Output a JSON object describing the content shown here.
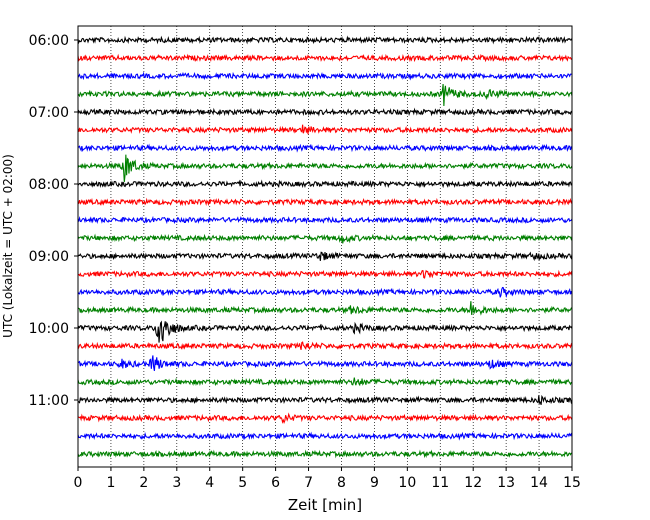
{
  "chart_data": {
    "type": "line",
    "xlabel": "Zeit  [min]",
    "ylabel": "UTC (Lokalzeit = UTC + 02:00)",
    "xlim": [
      0,
      15
    ],
    "x_ticks": [
      0,
      1,
      2,
      3,
      4,
      5,
      6,
      7,
      8,
      9,
      10,
      11,
      12,
      13,
      14,
      15
    ],
    "y_ticks": [
      "06:00",
      "07:00",
      "08:00",
      "09:00",
      "10:00",
      "11:00"
    ],
    "grid": "vertical-dotted",
    "row_interval_min": 15,
    "start_time": "06:00",
    "colors": [
      "#000000",
      "#ff0000",
      "#0000ff",
      "#008000"
    ],
    "rows": [
      {
        "label": "06:00",
        "color": "#000000",
        "events": []
      },
      {
        "label": "06:15",
        "color": "#ff0000",
        "events": []
      },
      {
        "label": "06:30",
        "color": "#0000ff",
        "events": []
      },
      {
        "label": "06:45",
        "color": "#008000",
        "events": [
          {
            "t": 11.1,
            "amp": 11
          },
          {
            "t": 12.4,
            "amp": 4
          }
        ]
      },
      {
        "label": "07:00",
        "color": "#000000",
        "events": []
      },
      {
        "label": "07:15",
        "color": "#ff0000",
        "events": [
          {
            "t": 6.8,
            "amp": 4
          }
        ]
      },
      {
        "label": "07:30",
        "color": "#0000ff",
        "events": []
      },
      {
        "label": "07:45",
        "color": "#008000",
        "events": [
          {
            "t": 1.4,
            "amp": 15
          }
        ]
      },
      {
        "label": "08:00",
        "color": "#000000",
        "events": []
      },
      {
        "label": "08:15",
        "color": "#ff0000",
        "events": []
      },
      {
        "label": "08:30",
        "color": "#0000ff",
        "events": []
      },
      {
        "label": "08:45",
        "color": "#008000",
        "events": [
          {
            "t": 8.0,
            "amp": 4
          }
        ]
      },
      {
        "label": "09:00",
        "color": "#000000",
        "events": [
          {
            "t": 7.3,
            "amp": 5
          },
          {
            "t": 13.8,
            "amp": 3
          }
        ]
      },
      {
        "label": "09:15",
        "color": "#ff0000",
        "events": [
          {
            "t": 10.5,
            "amp": 4
          }
        ]
      },
      {
        "label": "09:30",
        "color": "#0000ff",
        "events": [
          {
            "t": 12.8,
            "amp": 4
          }
        ]
      },
      {
        "label": "09:45",
        "color": "#008000",
        "events": [
          {
            "t": 8.3,
            "amp": 4
          },
          {
            "t": 11.9,
            "amp": 9
          }
        ]
      },
      {
        "label": "10:00",
        "color": "#000000",
        "events": [
          {
            "t": 2.45,
            "amp": 28
          },
          {
            "t": 8.4,
            "amp": 4
          }
        ]
      },
      {
        "label": "10:15",
        "color": "#ff0000",
        "events": [
          {
            "t": 6.8,
            "amp": 4
          }
        ]
      },
      {
        "label": "10:30",
        "color": "#0000ff",
        "events": [
          {
            "t": 2.25,
            "amp": 9
          },
          {
            "t": 1.3,
            "amp": 4
          },
          {
            "t": 12.5,
            "amp": 4
          }
        ]
      },
      {
        "label": "10:45",
        "color": "#008000",
        "events": [
          {
            "t": 8.4,
            "amp": 4
          }
        ]
      },
      {
        "label": "11:00",
        "color": "#000000",
        "events": [
          {
            "t": 14.0,
            "amp": 4
          }
        ]
      },
      {
        "label": "11:15",
        "color": "#ff0000",
        "events": [
          {
            "t": 6.2,
            "amp": 4
          }
        ]
      },
      {
        "label": "11:30",
        "color": "#0000ff",
        "events": []
      },
      {
        "label": "11:45",
        "color": "#008000",
        "events": []
      }
    ]
  }
}
